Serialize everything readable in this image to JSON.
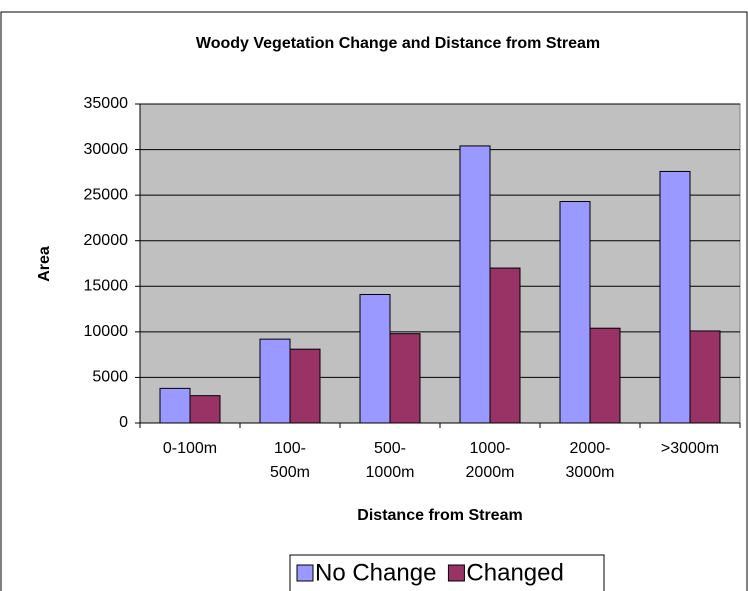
{
  "chart_data": {
    "type": "bar",
    "title": "Woody Vegetation Change and Distance from Stream",
    "xlabel": "Distance from Stream",
    "ylabel": "Area",
    "categories": [
      "0-100m",
      "100-500m",
      "500-1000m",
      "1000-2000m",
      "2000-3000m",
      ">3000m"
    ],
    "series": [
      {
        "name": "No Change",
        "color": "#9999ff",
        "values": [
          3800,
          9200,
          14100,
          30400,
          24300,
          27600
        ]
      },
      {
        "name": "Changed",
        "color": "#993366",
        "values": [
          3000,
          8100,
          9800,
          17000,
          10400,
          10100
        ]
      }
    ],
    "ylim": [
      0,
      35000
    ],
    "yticks": [
      0,
      5000,
      10000,
      15000,
      20000,
      25000,
      30000,
      35000
    ],
    "grid": true,
    "legend": "bottom"
  }
}
